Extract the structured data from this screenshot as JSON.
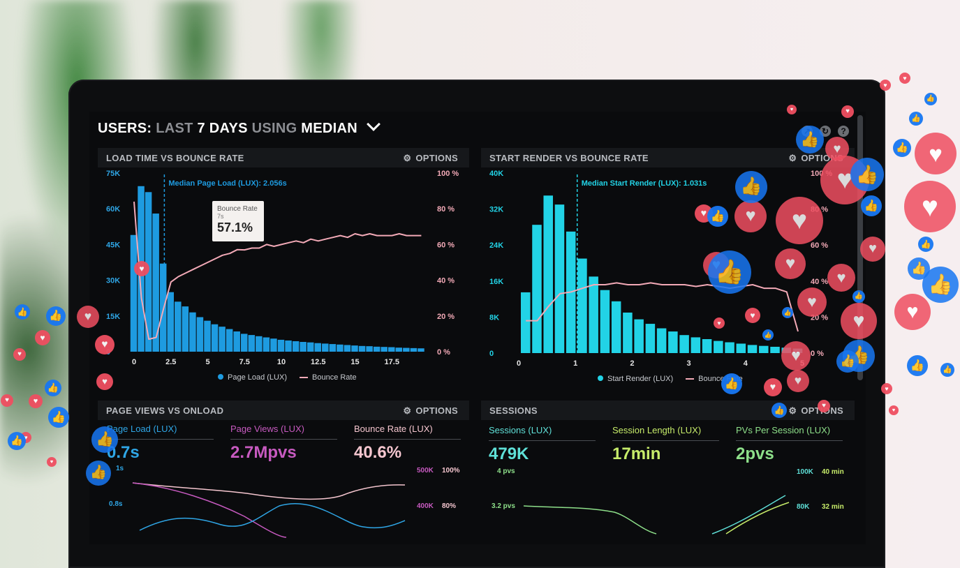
{
  "header": {
    "title_users": "USERS:",
    "title_last": "LAST",
    "title_days": "7 DAYS",
    "title_using": "USING",
    "title_median": "MEDIAN"
  },
  "panels": {
    "load_time": {
      "title": "LOAD TIME VS BOUNCE RATE",
      "options": "OPTIONS",
      "median_label": "Median Page Load (LUX): 2.056s",
      "y_left": [
        "75K",
        "60K",
        "45K",
        "30K",
        "15K",
        "0"
      ],
      "y_right": [
        "100 %",
        "80 %",
        "60 %",
        "40 %",
        "20 %",
        "0 %"
      ],
      "x_ticks": [
        "0",
        "2.5",
        "5",
        "7.5",
        "10",
        "12.5",
        "15",
        "17.5"
      ],
      "legend_bars": "Page Load (LUX)",
      "legend_line": "Bounce Rate",
      "tooltip": {
        "label": "Bounce Rate",
        "sub": "7s",
        "value": "57.1%"
      }
    },
    "start_render": {
      "title": "START RENDER VS BOUNCE RATE",
      "options": "OPTIONS",
      "median_label": "Median Start Render (LUX): 1.031s",
      "y_left": [
        "40K",
        "32K",
        "24K",
        "16K",
        "8K",
        "0"
      ],
      "y_right": [
        "100 %",
        "80 %",
        "60 %",
        "40 %",
        "20 %",
        "0 %"
      ],
      "x_ticks": [
        "0",
        "1",
        "2",
        "3",
        "4",
        "5"
      ],
      "legend_bars": "Start Render (LUX)",
      "legend_line": "Bounce Rate"
    },
    "page_views": {
      "title": "PAGE VIEWS VS ONLOAD",
      "options": "OPTIONS",
      "kpis": [
        {
          "label": "Page Load (LUX)",
          "value": "0.7s",
          "color": "#2fa6e6"
        },
        {
          "label": "Page Views (LUX)",
          "value": "2.7Mpvs",
          "color": "#c75ac0"
        },
        {
          "label": "Bounce Rate (LUX)",
          "value": "40.6%",
          "color": "#f5c6cf"
        }
      ],
      "left_ticks": [
        "1s",
        "0.8s"
      ],
      "right_ticks_a": [
        "500K",
        "400K"
      ],
      "right_ticks_b": [
        "100%",
        "80%"
      ]
    },
    "sessions": {
      "title": "SESSIONS",
      "options": "OPTIONS",
      "kpis": [
        {
          "label": "Sessions (LUX)",
          "value": "479K",
          "color": "#5fe0d8"
        },
        {
          "label": "Session Length (LUX)",
          "value": "17min",
          "color": "#c7ec6a"
        },
        {
          "label": "PVs Per Session (LUX)",
          "value": "2pvs",
          "color": "#8ee08a"
        }
      ],
      "left_ticks": [
        "4 pvs",
        "3.2 pvs"
      ],
      "right_ticks_a": [
        "100K",
        "80K"
      ],
      "right_ticks_b": [
        "40 min",
        "32 min"
      ]
    }
  },
  "colors": {
    "bar_blue": "#1e9be0",
    "bar_cyan": "#22d3e6",
    "bounce_line": "#f3aab7",
    "accent_blue": "#2fa6e6"
  },
  "chart_data": [
    {
      "type": "bar",
      "title": "LOAD TIME VS BOUNCE RATE",
      "x": [
        0,
        0.5,
        1,
        1.5,
        2,
        2.5,
        3,
        3.5,
        4,
        4.5,
        5,
        5.5,
        6,
        6.5,
        7,
        7.5,
        8,
        8.5,
        9,
        9.5,
        10,
        10.5,
        11,
        11.5,
        12,
        12.5,
        13,
        13.5,
        14,
        14.5,
        15,
        15.5,
        16,
        16.5,
        17,
        17.5,
        18,
        18.5,
        19,
        19.5
      ],
      "series": [
        {
          "name": "Page Load (LUX)",
          "values": [
            49000,
            69500,
            67000,
            58000,
            37000,
            25000,
            21000,
            19000,
            16500,
            14500,
            13000,
            11500,
            10500,
            9500,
            8500,
            7500,
            7000,
            6500,
            6000,
            5500,
            5000,
            4700,
            4400,
            4100,
            3900,
            3600,
            3400,
            3200,
            3000,
            2800,
            2600,
            2400,
            2300,
            2100,
            2000,
            1900,
            1700,
            1600,
            1500,
            1400
          ]
        },
        {
          "name": "Bounce Rate",
          "values": [
            84,
            30,
            7,
            8,
            24,
            39,
            42,
            44,
            46,
            48,
            50,
            52,
            54,
            55,
            57.1,
            57,
            58,
            58,
            60,
            59,
            60,
            61,
            62,
            61,
            63,
            62,
            63,
            64,
            65,
            64,
            66,
            65,
            66,
            65,
            65,
            65,
            66,
            65,
            65,
            65
          ]
        }
      ],
      "ylim": [
        0,
        75000
      ],
      "y2lim": [
        0,
        100
      ],
      "median_x": 2.056
    },
    {
      "type": "bar",
      "title": "START RENDER VS BOUNCE RATE",
      "x": [
        0.2,
        0.4,
        0.6,
        0.8,
        1.0,
        1.2,
        1.4,
        1.6,
        1.8,
        2.0,
        2.2,
        2.4,
        2.6,
        2.8,
        3.0,
        3.2,
        3.4,
        3.6,
        3.8,
        4.0,
        4.2,
        4.4,
        4.6,
        4.8,
        5.0
      ],
      "series": [
        {
          "name": "Start Render (LUX)",
          "values": [
            13500,
            28500,
            35000,
            33000,
            27000,
            21000,
            17000,
            14000,
            11500,
            9000,
            7500,
            6500,
            5500,
            4800,
            4000,
            3500,
            3100,
            2700,
            2400,
            2100,
            1800,
            1600,
            1400,
            1200,
            1000
          ]
        },
        {
          "name": "Bounce Rate",
          "values": [
            18,
            18,
            26,
            33,
            34,
            36,
            38,
            38,
            39,
            38,
            38,
            39,
            38,
            38,
            38,
            37,
            38,
            37,
            36,
            37,
            38,
            36,
            36,
            34,
            12
          ]
        }
      ],
      "ylim": [
        0,
        40000
      ],
      "y2lim": [
        0,
        100
      ],
      "median_x": 1.031
    }
  ]
}
